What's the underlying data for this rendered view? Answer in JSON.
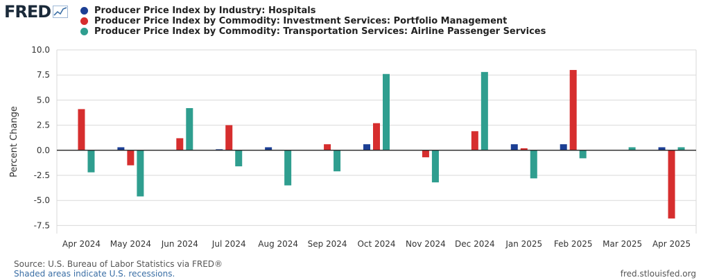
{
  "brand": {
    "logo_text": "FRED"
  },
  "legend": [
    {
      "label": "Producer Price Index by Industry: Hospitals",
      "color": "#1c3f94"
    },
    {
      "label": "Producer Price Index by Commodity: Investment Services: Portfolio Management",
      "color": "#d62e2e"
    },
    {
      "label": "Producer Price Index by Commodity: Transportation Services: Airline Passenger Services",
      "color": "#2f9e8f"
    }
  ],
  "chart_data": {
    "type": "bar",
    "categories": [
      "Apr 2024",
      "May 2024",
      "Jun 2024",
      "Jul 2024",
      "Aug 2024",
      "Sep 2024",
      "Oct 2024",
      "Nov 2024",
      "Dec 2024",
      "Jan 2025",
      "Feb 2025",
      "Mar 2025",
      "Apr 2025"
    ],
    "series": [
      {
        "name": "Producer Price Index by Industry: Hospitals",
        "color": "#1c3f94",
        "values": [
          0.0,
          0.3,
          0.0,
          0.1,
          0.3,
          0.0,
          0.6,
          0.0,
          0.0,
          0.6,
          0.6,
          0.0,
          0.3
        ]
      },
      {
        "name": "Producer Price Index by Commodity: Investment Services: Portfolio Management",
        "color": "#d62e2e",
        "values": [
          4.1,
          -1.5,
          1.2,
          2.5,
          0.0,
          0.6,
          2.7,
          -0.7,
          1.9,
          0.2,
          8.0,
          0.0,
          -6.8
        ]
      },
      {
        "name": "Producer Price Index by Commodity: Transportation Services: Airline Passenger Services",
        "color": "#2f9e8f",
        "values": [
          -2.2,
          -4.6,
          4.2,
          -1.6,
          -3.5,
          -2.1,
          7.6,
          -3.2,
          7.8,
          -2.8,
          -0.8,
          0.3,
          0.3
        ]
      }
    ],
    "ylabel": "Percent Change",
    "xlabel": "",
    "ylim": [
      -7.5,
      10.0
    ],
    "yticks": [
      10.0,
      7.5,
      5.0,
      2.5,
      0.0,
      -2.5,
      -5.0,
      -7.5
    ],
    "ytick_labels": [
      "10.0",
      "7.5",
      "5.0",
      "2.5",
      "0.0",
      "-2.5",
      "-5.0",
      "-7.5"
    ],
    "grid": true
  },
  "footer": {
    "source": "Source: U.S. Bureau of Labor Statistics via FRED®",
    "note": "Shaded areas indicate U.S. recessions.",
    "url": "fred.stlouisfed.org"
  }
}
